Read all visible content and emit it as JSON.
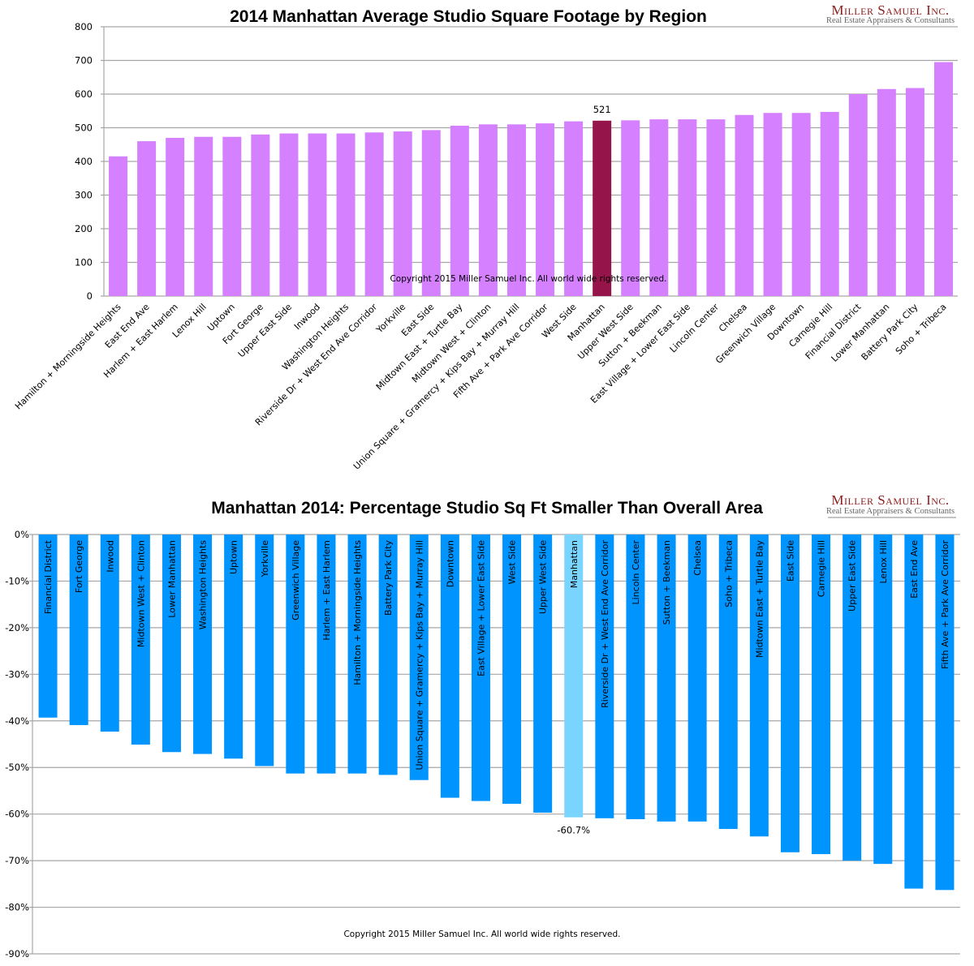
{
  "logo": {
    "name": "Miller Samuel Inc.",
    "tagline": "Real Estate Appraisers & Consultants"
  },
  "chart_data": [
    {
      "type": "bar",
      "title": "2014 Manhattan Average Studio Square Footage by Region",
      "xlabel": "",
      "ylabel": "",
      "ylim": [
        0,
        800
      ],
      "yticks": [
        0,
        100,
        200,
        300,
        400,
        500,
        600,
        700,
        800
      ],
      "grid": true,
      "highlight": "Manhattan",
      "highlight_label": "521",
      "copyright": "Copyright 2015 Miller Samuel Inc. All world wide rights reserved.",
      "colors": {
        "bar": "#d580ff",
        "highlight": "#95154b"
      },
      "categories": [
        "Hamilton + Morningside Heights",
        "East End Ave",
        "Harlem + East Harlem",
        "Lenox Hill",
        "Uptown",
        "Fort George",
        "Upper East Side",
        "Inwood",
        "Washington Heights",
        "Riverside Dr + West End Ave Corridor",
        "Yorkville",
        "East Side",
        "Midtown East + Turtle Bay",
        "Midtown West + Clinton",
        "Union Square + Gramercy + Kips Bay + Murray Hill",
        "Fifth Ave + Park Ave Corridor",
        "West Side",
        "Manhattan",
        "Upper West Side",
        "Sutton + Beekman",
        "East Village + Lower East Side",
        "Lincoln Center",
        "Chelsea",
        "Greenwich Village",
        "Downtown",
        "Carnegie Hill",
        "Financial District",
        "Lower Manhattan",
        "Battery Park City",
        "Soho + Tribeca"
      ],
      "values": [
        415,
        460,
        470,
        473,
        473,
        480,
        483,
        483,
        483,
        486,
        489,
        493,
        506,
        510,
        510,
        513,
        519,
        521,
        522,
        525,
        525,
        525,
        538,
        544,
        544,
        547,
        600,
        615,
        618,
        695
      ]
    },
    {
      "type": "bar",
      "title": "Manhattan 2014: Percentage Studio Sq Ft Smaller Than Overall Area",
      "xlabel": "",
      "ylabel": "",
      "ylim": [
        -90,
        0
      ],
      "yticks": [
        "0%",
        "-10%",
        "-20%",
        "-30%",
        "-40%",
        "-50%",
        "-60%",
        "-70%",
        "-80%",
        "-90%"
      ],
      "grid": true,
      "highlight": "Manhattan",
      "highlight_label": "-60.7%",
      "copyright": "Copyright 2015 Miller Samuel Inc.  All world wide rights reserved.",
      "colors": {
        "bar": "#0094ff",
        "highlight": "#79d5ff"
      },
      "categories": [
        "Financial District",
        "Fort George",
        "Inwood",
        "Midtown West + Clinton",
        "Lower Manhattan",
        "Washington Heights",
        "Uptown",
        "Yorkville",
        "Greenwich Village",
        "Harlem + East Harlem",
        "Hamilton + Morningside Heights",
        "Battery Park City",
        "Union Square + Gramercy + Kips Bay + Murray Hill",
        "Downtown",
        "East Village + Lower East Side",
        "West Side",
        "Upper West Side",
        "Manhattan",
        "Riverside Dr + West End Ave Corridor",
        "Lincoln Center",
        "Sutton + Beekman",
        "Chelsea",
        "Soho + Tribeca",
        "Midtown East + Turtle Bay",
        "East Side",
        "Carnegie Hill",
        "Upper East Side",
        "Lenox Hill",
        "East End Ave",
        "Fifth Ave + Park Ave Corridor"
      ],
      "values": [
        -39.3,
        -40.9,
        -42.3,
        -45.1,
        -46.7,
        -47.1,
        -48.1,
        -49.7,
        -51.3,
        -51.3,
        -51.3,
        -51.6,
        -52.7,
        -56.5,
        -57.2,
        -57.8,
        -59.7,
        -60.7,
        -60.9,
        -61.1,
        -61.6,
        -61.6,
        -63.2,
        -64.8,
        -68.2,
        -68.6,
        -70.0,
        -70.7,
        -76.0,
        -76.3
      ]
    }
  ]
}
